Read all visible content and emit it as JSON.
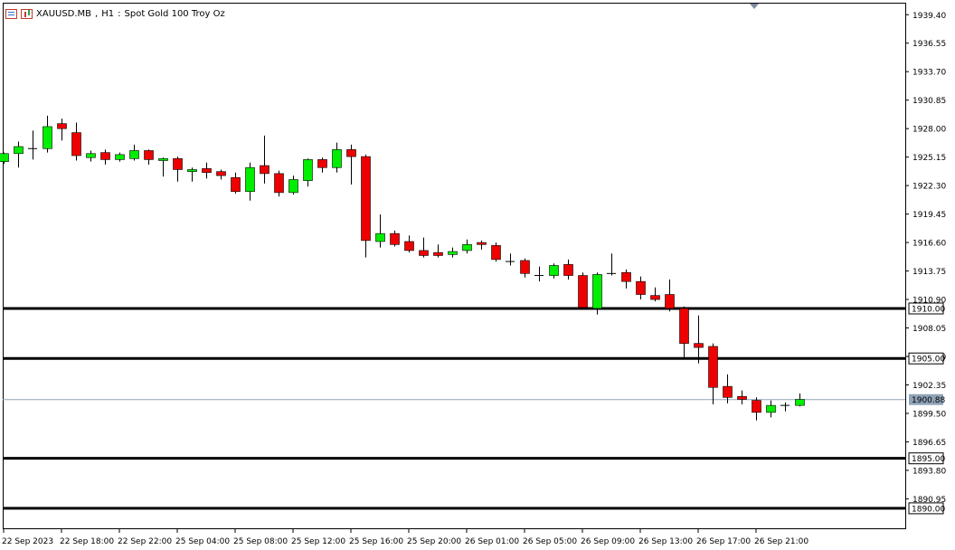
{
  "header": {
    "symbol": "XAUUSD.MB",
    "timeframe": "H1",
    "description": "Spot Gold 100 Troy Oz",
    "icons": [
      "chart-window-icon",
      "chart-type-icon"
    ]
  },
  "colors": {
    "bull": "#00ee00",
    "bear": "#ee0000",
    "wick": "#000000",
    "level_line": "#000000",
    "bid_line": "#8fa3b8",
    "bid_tag_bg": "#8fa3b8"
  },
  "chart_data": {
    "type": "candlestick",
    "title": "",
    "xlabel": "",
    "ylabel": "",
    "ylim": [
      1888.0,
      1940.6
    ],
    "price_ticks": [
      "1939.40",
      "1936.55",
      "1933.70",
      "1930.85",
      "1928.00",
      "1925.15",
      "1922.30",
      "1919.45",
      "1916.60",
      "1913.75",
      "1910.90",
      "1908.05",
      "1905.20",
      "1902.35",
      "1899.50",
      "1896.65",
      "1893.80",
      "1890.95"
    ],
    "time_labels": [
      "22 Sep 2023",
      "22 Sep 18:00",
      "22 Sep 22:00",
      "25 Sep 04:00",
      "25 Sep 08:00",
      "25 Sep 12:00",
      "25 Sep 16:00",
      "25 Sep 20:00",
      "26 Sep 01:00",
      "26 Sep 05:00",
      "26 Sep 09:00",
      "26 Sep 13:00",
      "26 Sep 17:00",
      "26 Sep 21:00"
    ],
    "horizontal_levels": [
      "1910.00",
      "1905.00",
      "1895.00",
      "1890.00"
    ],
    "bid": "1900.88",
    "candles": [
      {
        "o": 1924.7,
        "h": 1925.6,
        "l": 1924.5,
        "c": 1925.5
      },
      {
        "o": 1925.5,
        "h": 1926.7,
        "l": 1924.1,
        "c": 1926.2
      },
      {
        "o": 1926.0,
        "h": 1927.8,
        "l": 1924.9,
        "c": 1926.0
      },
      {
        "o": 1926.0,
        "h": 1929.3,
        "l": 1925.6,
        "c": 1928.2
      },
      {
        "o": 1928.5,
        "h": 1929.0,
        "l": 1926.8,
        "c": 1928.0
      },
      {
        "o": 1927.6,
        "h": 1928.6,
        "l": 1924.8,
        "c": 1925.3
      },
      {
        "o": 1925.1,
        "h": 1925.8,
        "l": 1924.7,
        "c": 1925.5
      },
      {
        "o": 1925.6,
        "h": 1925.9,
        "l": 1924.4,
        "c": 1924.9
      },
      {
        "o": 1924.9,
        "h": 1925.6,
        "l": 1924.7,
        "c": 1925.4
      },
      {
        "o": 1925.0,
        "h": 1926.4,
        "l": 1924.8,
        "c": 1925.8
      },
      {
        "o": 1925.8,
        "h": 1925.9,
        "l": 1924.4,
        "c": 1924.9
      },
      {
        "o": 1924.8,
        "h": 1925.1,
        "l": 1923.2,
        "c": 1925.0
      },
      {
        "o": 1925.0,
        "h": 1925.2,
        "l": 1922.7,
        "c": 1923.9
      },
      {
        "o": 1923.7,
        "h": 1924.1,
        "l": 1922.7,
        "c": 1923.9
      },
      {
        "o": 1924.0,
        "h": 1924.6,
        "l": 1923.0,
        "c": 1923.6
      },
      {
        "o": 1923.7,
        "h": 1923.9,
        "l": 1922.9,
        "c": 1923.3
      },
      {
        "o": 1923.1,
        "h": 1923.6,
        "l": 1921.5,
        "c": 1921.7
      },
      {
        "o": 1921.7,
        "h": 1924.6,
        "l": 1920.8,
        "c": 1924.1
      },
      {
        "o": 1924.3,
        "h": 1927.3,
        "l": 1922.5,
        "c": 1923.5
      },
      {
        "o": 1923.5,
        "h": 1923.8,
        "l": 1921.2,
        "c": 1921.6
      },
      {
        "o": 1921.6,
        "h": 1923.3,
        "l": 1921.4,
        "c": 1922.9
      },
      {
        "o": 1922.8,
        "h": 1925.0,
        "l": 1922.2,
        "c": 1924.9
      },
      {
        "o": 1924.9,
        "h": 1925.1,
        "l": 1923.6,
        "c": 1924.1
      },
      {
        "o": 1924.1,
        "h": 1926.6,
        "l": 1923.6,
        "c": 1925.9
      },
      {
        "o": 1925.9,
        "h": 1926.4,
        "l": 1922.4,
        "c": 1925.2
      },
      {
        "o": 1925.2,
        "h": 1925.4,
        "l": 1915.1,
        "c": 1916.8
      },
      {
        "o": 1916.7,
        "h": 1919.4,
        "l": 1916.1,
        "c": 1917.5
      },
      {
        "o": 1917.5,
        "h": 1917.8,
        "l": 1916.2,
        "c": 1916.4
      },
      {
        "o": 1916.7,
        "h": 1917.3,
        "l": 1915.6,
        "c": 1915.8
      },
      {
        "o": 1915.8,
        "h": 1917.1,
        "l": 1915.1,
        "c": 1915.3
      },
      {
        "o": 1915.6,
        "h": 1916.4,
        "l": 1915.1,
        "c": 1915.3
      },
      {
        "o": 1915.4,
        "h": 1916.1,
        "l": 1915.1,
        "c": 1915.7
      },
      {
        "o": 1915.8,
        "h": 1916.9,
        "l": 1915.5,
        "c": 1916.4
      },
      {
        "o": 1916.6,
        "h": 1916.8,
        "l": 1915.9,
        "c": 1916.4
      },
      {
        "o": 1916.3,
        "h": 1916.6,
        "l": 1914.7,
        "c": 1914.9
      },
      {
        "o": 1914.7,
        "h": 1915.5,
        "l": 1914.3,
        "c": 1914.6
      },
      {
        "o": 1914.8,
        "h": 1915.0,
        "l": 1913.1,
        "c": 1913.5
      },
      {
        "o": 1913.3,
        "h": 1914.2,
        "l": 1912.7,
        "c": 1913.2
      },
      {
        "o": 1913.3,
        "h": 1914.5,
        "l": 1913.0,
        "c": 1914.3
      },
      {
        "o": 1914.4,
        "h": 1914.9,
        "l": 1912.9,
        "c": 1913.3
      },
      {
        "o": 1913.3,
        "h": 1913.6,
        "l": 1909.9,
        "c": 1910.1
      },
      {
        "o": 1910.0,
        "h": 1913.6,
        "l": 1909.4,
        "c": 1913.4
      },
      {
        "o": 1913.4,
        "h": 1915.5,
        "l": 1913.3,
        "c": 1913.5
      },
      {
        "o": 1913.6,
        "h": 1913.9,
        "l": 1912.0,
        "c": 1912.7
      },
      {
        "o": 1912.7,
        "h": 1913.2,
        "l": 1910.9,
        "c": 1911.4
      },
      {
        "o": 1911.3,
        "h": 1912.1,
        "l": 1910.7,
        "c": 1910.9
      },
      {
        "o": 1911.4,
        "h": 1912.9,
        "l": 1909.7,
        "c": 1910.0
      },
      {
        "o": 1910.0,
        "h": 1910.2,
        "l": 1905.0,
        "c": 1906.5
      },
      {
        "o": 1906.5,
        "h": 1909.3,
        "l": 1904.5,
        "c": 1906.1
      },
      {
        "o": 1906.2,
        "h": 1906.5,
        "l": 1900.4,
        "c": 1902.1
      },
      {
        "o": 1902.2,
        "h": 1903.4,
        "l": 1900.5,
        "c": 1901.1
      },
      {
        "o": 1901.2,
        "h": 1901.8,
        "l": 1900.4,
        "c": 1900.9
      },
      {
        "o": 1900.8,
        "h": 1901.1,
        "l": 1898.8,
        "c": 1899.6
      },
      {
        "o": 1899.6,
        "h": 1900.8,
        "l": 1899.1,
        "c": 1900.3
      },
      {
        "o": 1900.3,
        "h": 1900.6,
        "l": 1899.7,
        "c": 1900.3
      },
      {
        "o": 1900.3,
        "h": 1901.5,
        "l": 1900.2,
        "c": 1900.9
      }
    ]
  }
}
